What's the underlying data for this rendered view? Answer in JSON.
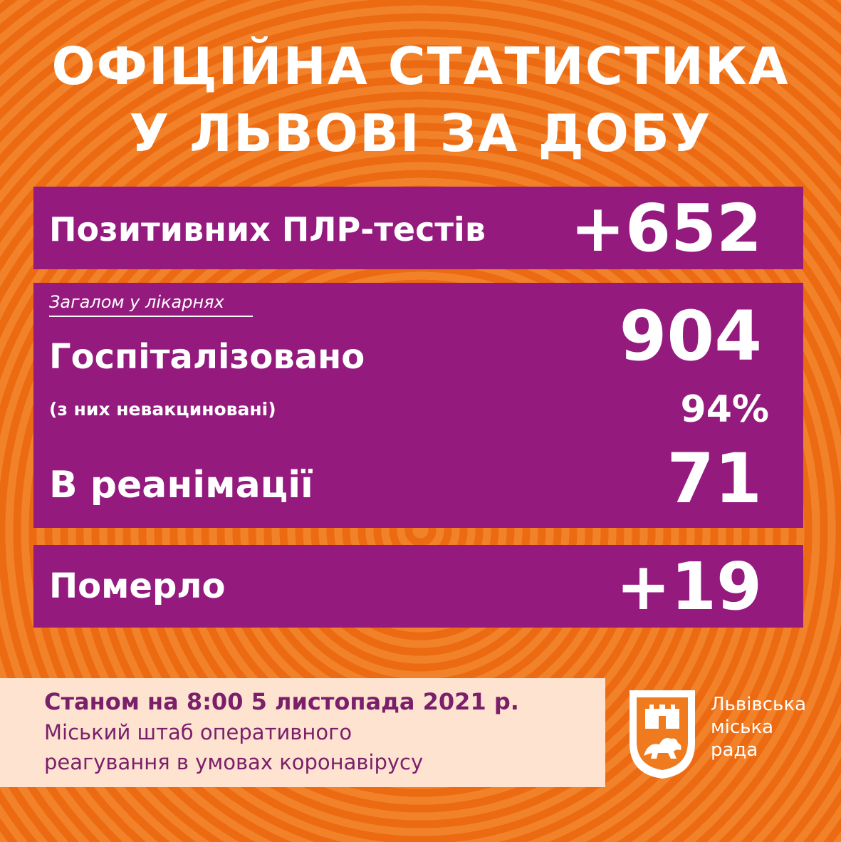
{
  "title": {
    "line1": "ОФІЦІЙНА СТАТИСТИКА",
    "line2": "У ЛЬВОВІ ЗА ДОБУ"
  },
  "tests": {
    "label": "Позитивних ПЛР-тестів",
    "value": "+652"
  },
  "hospital": {
    "caption": "Загалом у лікарнях",
    "hospitalized_label": "Госпіталізовано",
    "hospitalized_value": "904",
    "unvaccinated_label": "(з них невакциновані)",
    "unvaccinated_value": "94%",
    "icu_label": "В реанімації",
    "icu_value": "71"
  },
  "deaths": {
    "label": "Померло",
    "value": "+19"
  },
  "footer": {
    "date": "Станом на 8:00 5 листопада 2021 р.",
    "org_line1": "Міський штаб оперативного",
    "org_line2": "реагування в умовах коронавірусу"
  },
  "logo": {
    "line1": "Львівська",
    "line2": "міська",
    "line3": "рада"
  },
  "colors": {
    "background": "#f07a1e",
    "panel": "#941a7e",
    "footer_bg": "#fde3d0",
    "footer_text": "#7b1f6a"
  }
}
